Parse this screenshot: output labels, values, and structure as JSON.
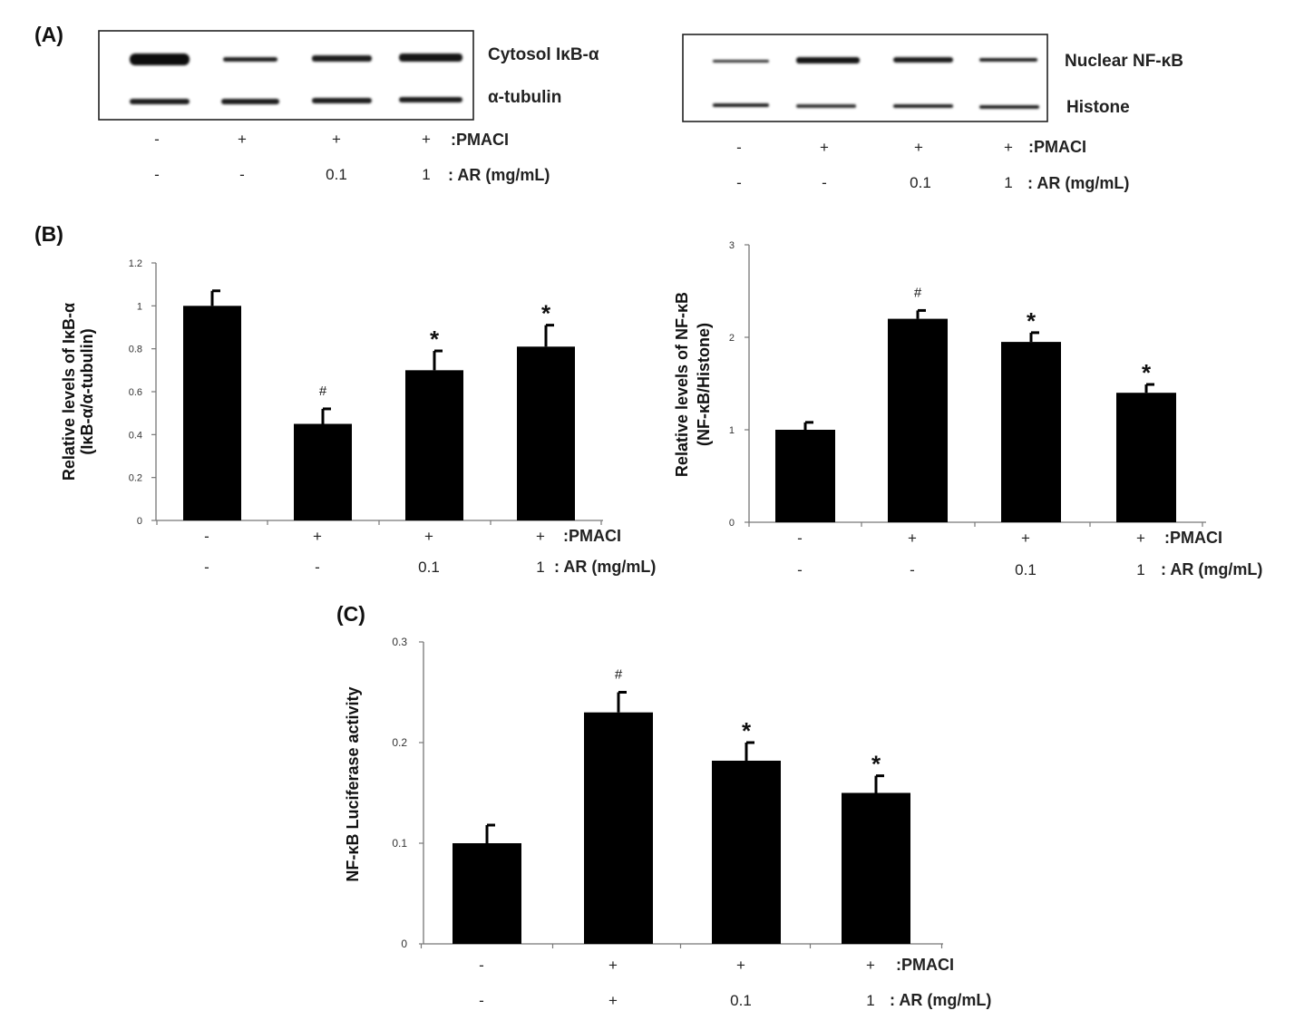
{
  "panel_a": {
    "label": "(A)",
    "left_blot": {
      "band1_label": "Cytosol IκB-α",
      "band2_label": "α-tubulin"
    },
    "right_blot": {
      "band1_label": "Nuclear NF-κB",
      "band2_label": "Histone"
    },
    "treatment_left": {
      "pmaci": [
        "-",
        "+",
        "+",
        "+"
      ],
      "ar": [
        "-",
        "-",
        "0.1",
        "1"
      ]
    },
    "treatment_right": {
      "pmaci": [
        "-",
        "+",
        "+",
        "+"
      ],
      "ar": [
        "-",
        "-",
        "0.1",
        "1"
      ]
    },
    "pmaci_label": ":PMACI",
    "ar_label": ": AR (mg/mL)"
  },
  "panel_b_label": "(B)",
  "panel_c_label": "(C)",
  "chart_data": [
    {
      "id": "ikba",
      "type": "bar",
      "ylabel": [
        "Relative levels of IκB-α",
        "(IκB-α/α-tubulin)"
      ],
      "ylim": [
        0,
        1.2
      ],
      "yticks": [
        "0",
        "0.2",
        "0.4",
        "0.6",
        "0.8",
        "1",
        "1.2"
      ],
      "yticks_values": [
        0,
        0.2,
        0.4,
        0.6,
        0.8,
        1.0,
        1.2
      ],
      "values": [
        1.0,
        0.45,
        0.7,
        0.81
      ],
      "errors": [
        0.07,
        0.07,
        0.09,
        0.1
      ],
      "significance": [
        "",
        "#",
        "*",
        "*"
      ],
      "pmaci": [
        "-",
        "+",
        "+",
        "+"
      ],
      "ar": [
        "-",
        "-",
        "0.1",
        "1"
      ],
      "pmaci_label": ":PMACI",
      "ar_label": ": AR (mg/mL)",
      "grid": false
    },
    {
      "id": "nfkb",
      "type": "bar",
      "ylabel": [
        "Relative levels of NF-κB",
        "(NF-κB/Histone)"
      ],
      "ylim": [
        0,
        3
      ],
      "yticks": [
        "0",
        "1",
        "2",
        "3"
      ],
      "yticks_values": [
        0,
        1,
        2,
        3
      ],
      "values": [
        1.0,
        2.2,
        1.95,
        1.4
      ],
      "errors": [
        0.08,
        0.09,
        0.1,
        0.09
      ],
      "significance": [
        "",
        "#",
        "*",
        "*"
      ],
      "pmaci": [
        "-",
        "+",
        "+",
        "+"
      ],
      "ar": [
        "-",
        "-",
        "0.1",
        "1"
      ],
      "pmaci_label": ":PMACI",
      "ar_label": ": AR (mg/mL)",
      "grid": false
    },
    {
      "id": "luciferase",
      "type": "bar",
      "ylabel": [
        "NF-κB  Luciferase activity"
      ],
      "ylim": [
        0,
        0.3
      ],
      "yticks": [
        "0",
        "0.1",
        "0.2",
        "0.3"
      ],
      "yticks_values": [
        0,
        0.1,
        0.2,
        0.3
      ],
      "values": [
        0.1,
        0.23,
        0.182,
        0.15
      ],
      "errors": [
        0.018,
        0.02,
        0.018,
        0.017
      ],
      "significance": [
        "",
        "#",
        "*",
        "*"
      ],
      "pmaci": [
        "-",
        "+",
        "+",
        "+"
      ],
      "ar": [
        "-",
        "+",
        "0.1",
        "1"
      ],
      "pmaci_label": ":PMACI",
      "ar_label": ": AR (mg/mL)",
      "grid": false
    }
  ]
}
